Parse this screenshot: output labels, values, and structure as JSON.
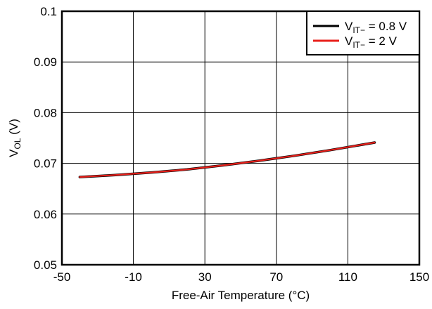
{
  "chart_data": {
    "type": "line",
    "xlabel": "Free-Air Temperature (°C)",
    "ylabel": {
      "main": "V",
      "sub": "OL",
      "tail": " (V)"
    },
    "xlim": [
      -50,
      150
    ],
    "ylim": [
      0.05,
      0.1
    ],
    "x_ticks": [
      -50,
      -10,
      30,
      70,
      110,
      150
    ],
    "x_tick_labels": [
      "-50",
      "-10",
      "30",
      "70",
      "110",
      "150"
    ],
    "y_ticks": [
      0.05,
      0.06,
      0.07,
      0.08,
      0.09,
      0.1
    ],
    "y_tick_labels": [
      "0.05",
      "0.06",
      "0.07",
      "0.08",
      "0.09",
      "0.1"
    ],
    "grid": true,
    "legend_position": "top-right",
    "series": [
      {
        "legend": {
          "main": "V",
          "sub": "IT−",
          "tail": " = 0.8 V"
        },
        "color": "#000000",
        "x": [
          -40,
          -20,
          0,
          20,
          40,
          60,
          80,
          100,
          125
        ],
        "y": [
          0.0673,
          0.0677,
          0.0682,
          0.0688,
          0.0696,
          0.0705,
          0.0715,
          0.0726,
          0.0741
        ]
      },
      {
        "legend": {
          "main": "V",
          "sub": "IT−",
          "tail": " = 2 V"
        },
        "color": "#e8201b",
        "x": [
          -40,
          -20,
          0,
          20,
          40,
          60,
          80,
          100,
          125
        ],
        "y": [
          0.0673,
          0.0677,
          0.0682,
          0.0688,
          0.0696,
          0.0705,
          0.0715,
          0.0726,
          0.0741
        ]
      }
    ]
  }
}
